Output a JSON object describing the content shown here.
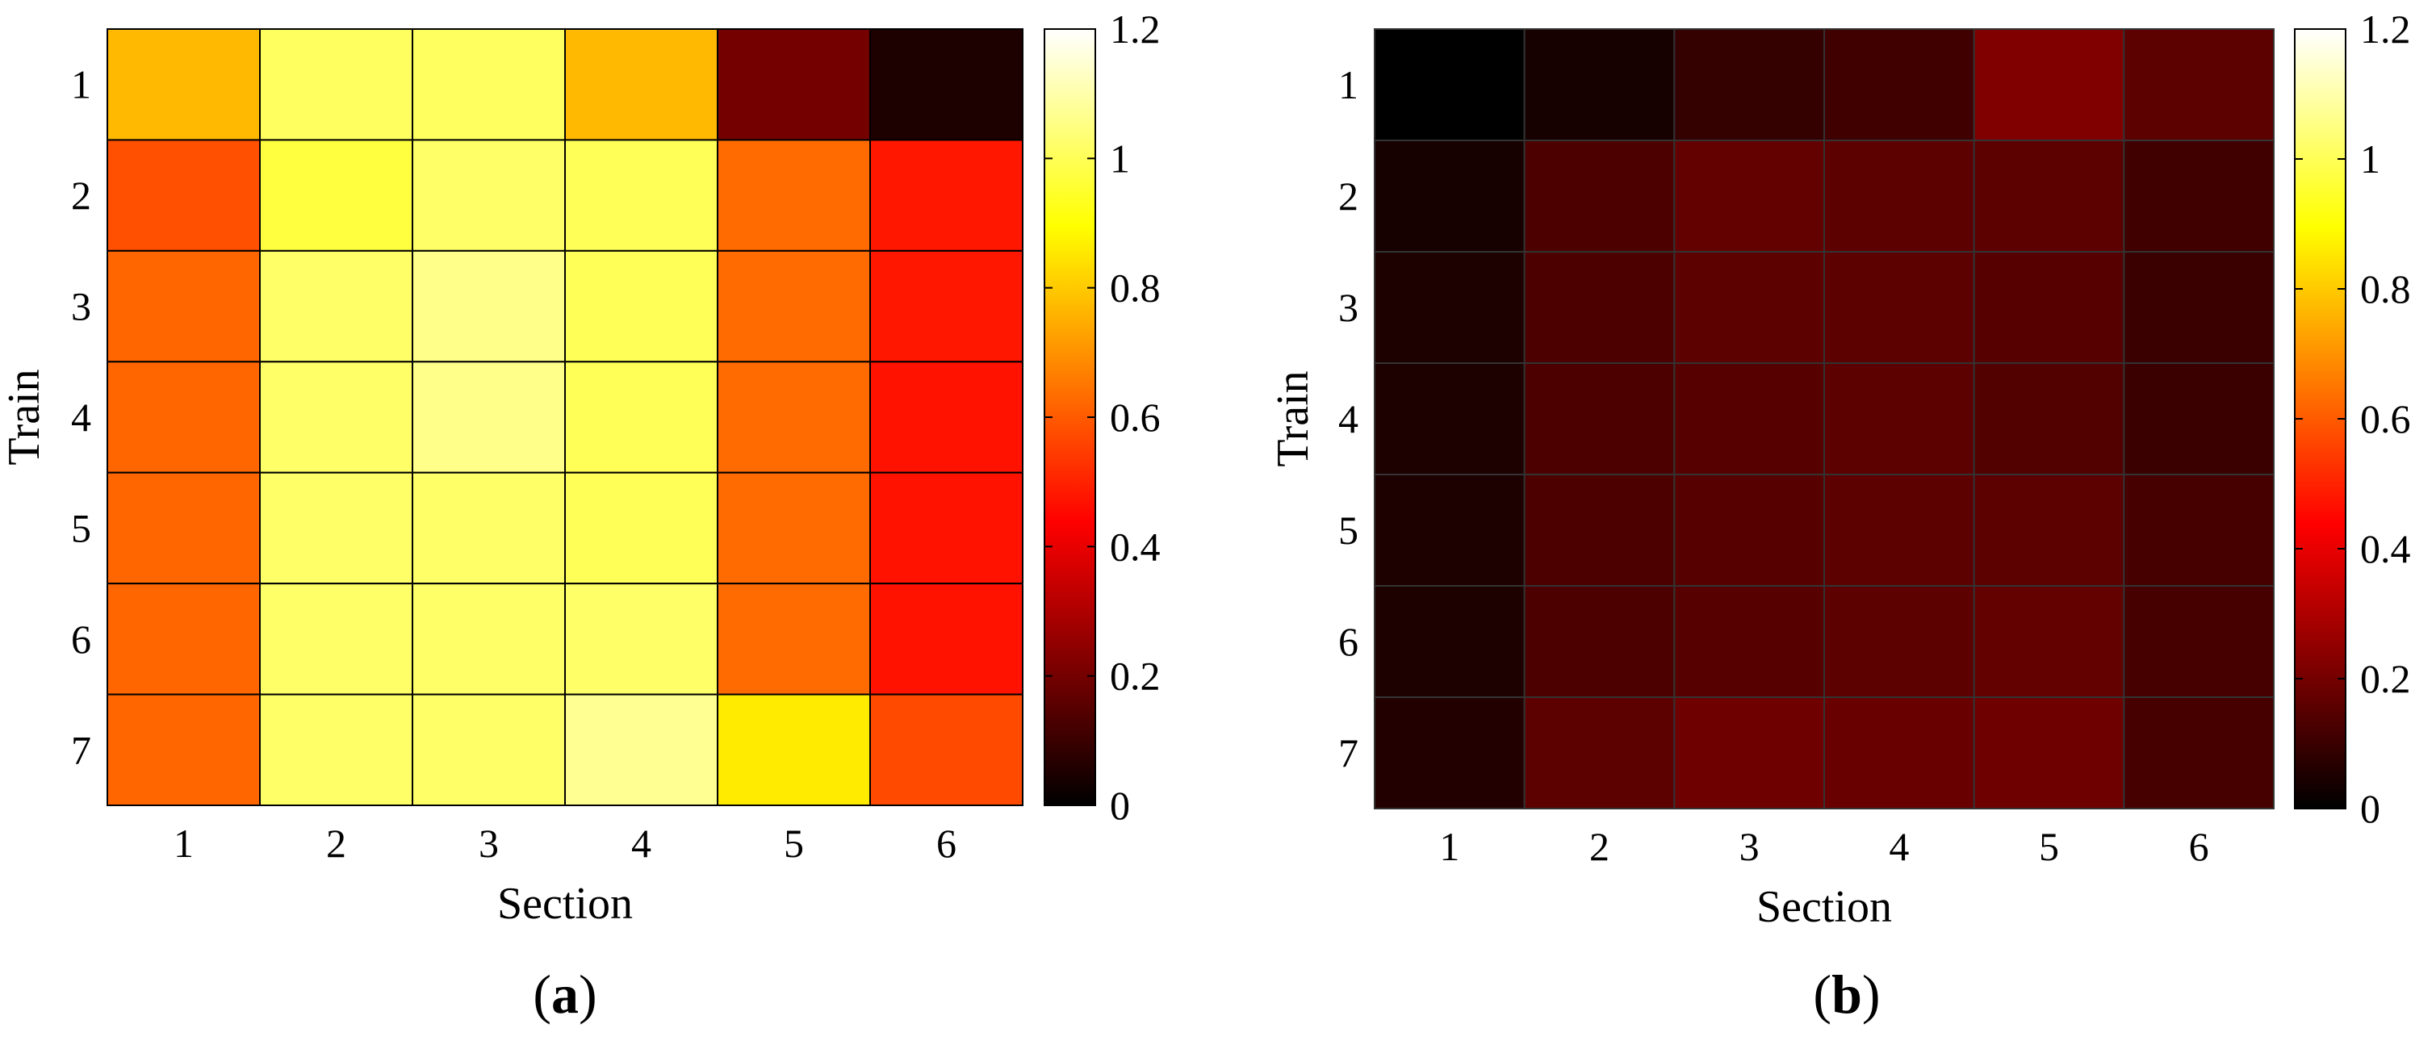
{
  "chart_data": [
    {
      "type": "heatmap",
      "panel_label": "a",
      "xlabel": "Section",
      "ylabel": "Train",
      "x_categories": [
        "1",
        "2",
        "3",
        "4",
        "5",
        "6"
      ],
      "y_categories": [
        "1",
        "2",
        "3",
        "4",
        "5",
        "6",
        "7"
      ],
      "values": [
        [
          0.77,
          1.01,
          1.01,
          0.77,
          0.2,
          0.05
        ],
        [
          0.58,
          0.97,
          1.02,
          1.0,
          0.63,
          0.48
        ],
        [
          0.62,
          1.02,
          1.06,
          1.0,
          0.63,
          0.48
        ],
        [
          0.62,
          1.02,
          1.06,
          1.0,
          0.63,
          0.47
        ],
        [
          0.62,
          1.02,
          1.02,
          1.0,
          0.63,
          0.47
        ],
        [
          0.62,
          1.02,
          1.02,
          1.02,
          0.63,
          0.47
        ],
        [
          0.62,
          1.02,
          1.02,
          1.07,
          0.86,
          0.57
        ]
      ],
      "colormap": "hot",
      "colorbar": {
        "min": 0,
        "max": 1.2,
        "ticks": [
          "0",
          "0.2",
          "0.4",
          "0.6",
          "0.8",
          "1",
          "1.2"
        ]
      },
      "cell_border_color": "#000000"
    },
    {
      "type": "heatmap",
      "panel_label": "b",
      "xlabel": "Section",
      "ylabel": "Train",
      "x_categories": [
        "1",
        "2",
        "3",
        "4",
        "5",
        "6"
      ],
      "y_categories": [
        "1",
        "2",
        "3",
        "4",
        "5",
        "6",
        "7"
      ],
      "values": [
        [
          0.0,
          0.04,
          0.09,
          0.11,
          0.22,
          0.16
        ],
        [
          0.04,
          0.13,
          0.17,
          0.16,
          0.16,
          0.11
        ],
        [
          0.05,
          0.13,
          0.16,
          0.16,
          0.15,
          0.1
        ],
        [
          0.05,
          0.13,
          0.15,
          0.16,
          0.14,
          0.1
        ],
        [
          0.05,
          0.13,
          0.15,
          0.16,
          0.16,
          0.12
        ],
        [
          0.05,
          0.13,
          0.15,
          0.16,
          0.17,
          0.12
        ],
        [
          0.06,
          0.16,
          0.19,
          0.18,
          0.19,
          0.12
        ]
      ],
      "colormap": "hot",
      "colorbar": {
        "min": 0,
        "max": 1.2,
        "ticks": [
          "0",
          "0.2",
          "0.4",
          "0.6",
          "0.8",
          "1",
          "1.2"
        ]
      },
      "cell_border_color": "#333333"
    }
  ]
}
